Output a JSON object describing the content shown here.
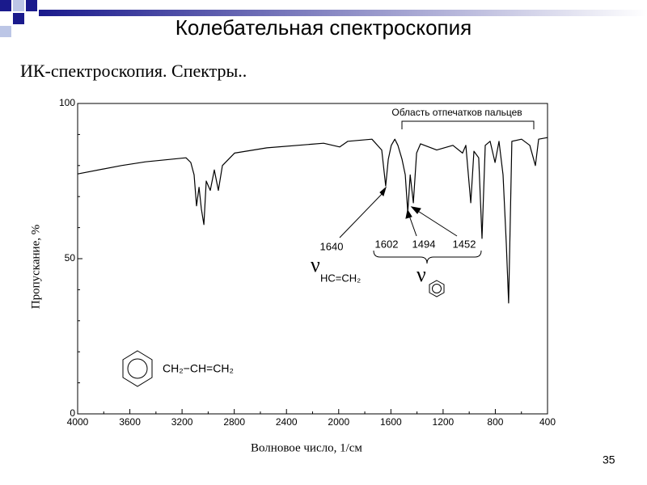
{
  "slide": {
    "title": "Колебательная спектроскопия",
    "subtitle": "ИК-спектроскопия. Спектры..",
    "page_number": "35"
  },
  "chart_data": {
    "type": "line",
    "xlabel": "Волновое число, 1/см",
    "ylabel": "Пропускание, %",
    "xlim": [
      4000,
      400
    ],
    "ylim": [
      0,
      100
    ],
    "xticks": [
      4000,
      3600,
      3200,
      2800,
      2400,
      2000,
      1600,
      1200,
      800,
      400
    ],
    "xminorticks": [
      3800,
      3400,
      3000,
      2600,
      2200,
      1800,
      1400,
      1000,
      600
    ],
    "yticks": [
      0,
      50,
      100
    ],
    "yminorticks": [
      10,
      20,
      30,
      40,
      60,
      70,
      80,
      90
    ],
    "color": "#000000",
    "x": [
      4000,
      3665,
      3480,
      3170,
      3133,
      3108,
      3089,
      3070,
      3052,
      3033,
      3015,
      2984,
      2953,
      2922,
      2891,
      2798,
      2550,
      2116,
      1992,
      1930,
      1745,
      1670,
      1640,
      1620,
      1597,
      1570,
      1546,
      1515,
      1490,
      1471,
      1452,
      1428,
      1403,
      1373,
      1249,
      1125,
      1051,
      1026,
      988,
      964,
      927,
      902,
      877,
      840,
      802,
      772,
      741,
      716,
      698,
      673,
      599,
      536,
      493,
      468,
      400
    ],
    "values": [
      77.3,
      80,
      81.2,
      82.5,
      81,
      77,
      67,
      73,
      66,
      61,
      75,
      72,
      78.6,
      72,
      80,
      84,
      85.7,
      87.2,
      86,
      87.8,
      88.5,
      85,
      73.4,
      82,
      86.5,
      88.5,
      86.5,
      82,
      77,
      65,
      77,
      68,
      84,
      87,
      85,
      86.5,
      84,
      86.5,
      68,
      84.6,
      82.5,
      56.5,
      86.5,
      87.8,
      81,
      87.8,
      77,
      55,
      35.7,
      87.8,
      88.5,
      86.5,
      80,
      88.5,
      89
    ],
    "annotations": {
      "fingerprint": "Область отпечатков пальцев",
      "peak_1640": "1640",
      "peak_1602": "1602",
      "peak_1494": "1494",
      "peak_1452": "1452",
      "nu_vinyl": "ν",
      "vinyl_group": "HC=CH₂",
      "nu_ring": "ν",
      "substituent": "CH₂−CH=CH₂"
    }
  }
}
